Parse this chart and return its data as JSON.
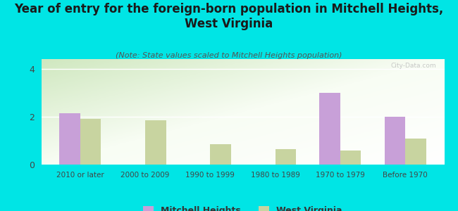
{
  "title": "Year of entry for the foreign-born population in Mitchell Heights,\nWest Virginia",
  "subtitle": "(Note: State values scaled to Mitchell Heights population)",
  "categories": [
    "2010 or later",
    "2000 to 2009",
    "1990 to 1999",
    "1980 to 1989",
    "1970 to 1979",
    "Before 1970"
  ],
  "mitchell_heights": [
    2.15,
    0,
    0,
    0,
    3.0,
    2.0
  ],
  "west_virginia": [
    1.9,
    1.85,
    0.85,
    0.65,
    0.6,
    1.1
  ],
  "mitchell_color": "#c8a0d8",
  "wv_color": "#c8d4a0",
  "background_color": "#00e5e5",
  "ylim": [
    0,
    4.4
  ],
  "yticks": [
    0,
    2,
    4
  ],
  "bar_width": 0.32,
  "legend_mitchell": "Mitchell Heights",
  "legend_wv": "West Virginia",
  "title_fontsize": 12,
  "subtitle_fontsize": 8,
  "watermark": "City-Data.com"
}
